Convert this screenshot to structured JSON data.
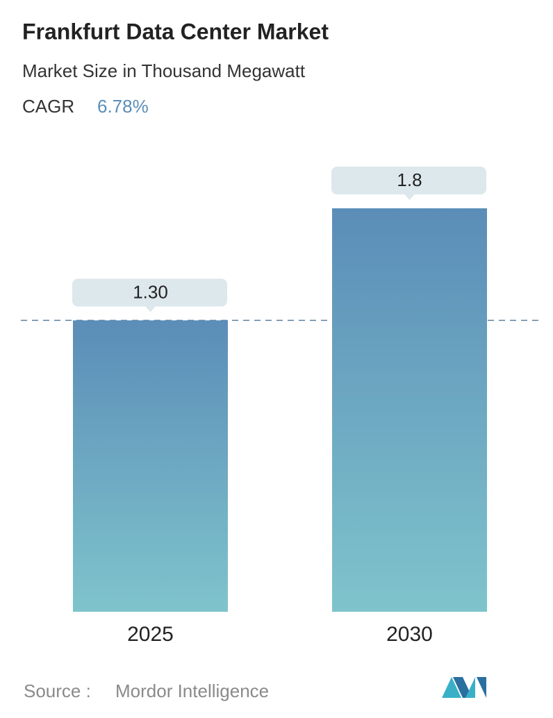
{
  "chart_data": {
    "type": "bar",
    "title": "Frankfurt Data Center Market",
    "subtitle": "Market Size in Thousand Megawatt",
    "cagr_label": "CAGR",
    "cagr_value": "6.78%",
    "categories": [
      "2025",
      "2030"
    ],
    "values": [
      1.3,
      1.8
    ],
    "value_labels": [
      "1.30",
      "1.8"
    ],
    "color_top": "#5b8db8",
    "color_bottom": "#7fc4cc",
    "source_label": "Source :",
    "source": "Mordor Intelligence"
  }
}
